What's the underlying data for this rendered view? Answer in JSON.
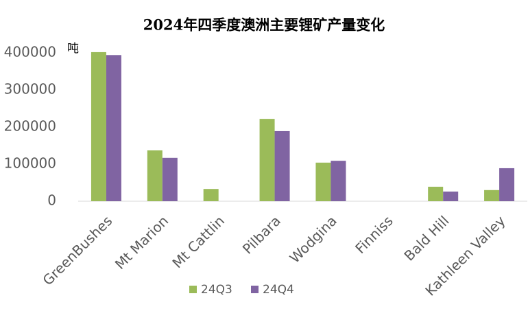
{
  "chart_data": {
    "type": "bar",
    "title": "2024年四季度澳洲主要锂矿产量变化",
    "y_unit": "吨",
    "categories": [
      "GreenBushes",
      "Mt Marion",
      "Mt Cattlin",
      "Pilbara",
      "Wodgina",
      "Finniss",
      "Bald Hill",
      "Kathleen Valley"
    ],
    "series": [
      {
        "name": "24Q3",
        "color": "#9bbb59",
        "values": [
          402000,
          137000,
          33000,
          222000,
          104000,
          0,
          39000,
          30000
        ]
      },
      {
        "name": "24Q4",
        "color": "#8064a2",
        "values": [
          394000,
          117000,
          0,
          189000,
          109000,
          0,
          26000,
          89000
        ]
      }
    ],
    "ylim": [
      0,
      400000
    ],
    "yticks": [
      0,
      100000,
      200000,
      300000,
      400000
    ],
    "legend": "bottom"
  }
}
